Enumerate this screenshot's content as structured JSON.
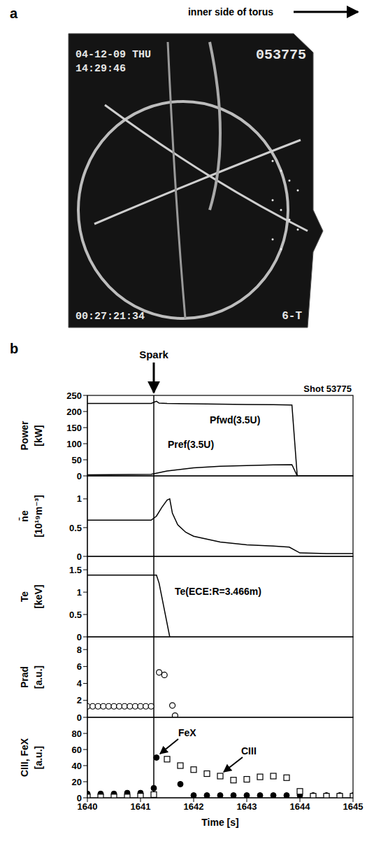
{
  "panel_a": {
    "letter": "a",
    "caption": "inner side of torus",
    "overlay": {
      "date": "04-12-09 THU",
      "time": "14:29:46",
      "frame": "053775",
      "timecode": "00:27:21:34",
      "camera": "6-T"
    }
  },
  "panel_b_letter": "b",
  "spark": {
    "text": "Spark",
    "x": 1641.25
  },
  "chart_data": [
    {
      "type": "line",
      "title": "Shot 53775",
      "ylabel": "Power [kW]",
      "xlim": [
        1640,
        1645
      ],
      "ylim": [
        0,
        250
      ],
      "yticks": [
        0,
        50,
        100,
        150,
        200,
        250
      ],
      "series": [
        {
          "name": "Pfwd(3.5U)",
          "color": "#000000",
          "line_style": "solid",
          "x": [
            1640,
            1641.2,
            1641.3,
            1641.35,
            1641.5,
            1642,
            1642.5,
            1643,
            1643.5,
            1643.85,
            1643.95,
            1645
          ],
          "values": [
            225,
            225,
            232,
            226,
            225,
            224,
            223,
            222,
            221,
            220,
            0,
            0
          ]
        },
        {
          "name": "Pref(3.5U)",
          "color": "#000000",
          "line_style": "solid",
          "x": [
            1640,
            1641.2,
            1641.5,
            1642,
            1642.5,
            1643,
            1643.5,
            1643.85,
            1643.95,
            1645
          ],
          "values": [
            3,
            5,
            15,
            25,
            30,
            32,
            34,
            35,
            0,
            0
          ]
        }
      ]
    },
    {
      "type": "line",
      "ylabel": "n̄e [10¹⁹m⁻³]",
      "xlim": [
        1640,
        1645
      ],
      "ylim": [
        0,
        1.4
      ],
      "yticks": [
        0,
        0.5,
        1
      ],
      "series": [
        {
          "color": "#000000",
          "line_style": "solid",
          "x": [
            1640,
            1641.2,
            1641.3,
            1641.4,
            1641.5,
            1641.55,
            1641.6,
            1641.7,
            1641.85,
            1642,
            1642.5,
            1643,
            1643.5,
            1643.8,
            1644,
            1644.5,
            1645
          ],
          "values": [
            0.63,
            0.63,
            0.7,
            0.85,
            0.98,
            1.0,
            0.75,
            0.55,
            0.42,
            0.35,
            0.25,
            0.2,
            0.18,
            0.16,
            0.06,
            0.05,
            0.05
          ]
        }
      ]
    },
    {
      "type": "line",
      "ylabel": "Te [keV]",
      "xlim": [
        1640,
        1645
      ],
      "ylim": [
        0,
        1.8
      ],
      "yticks": [
        0,
        0.5,
        1,
        1.5
      ],
      "series": [
        {
          "name": "Te(ECE:R=3.466m)",
          "color": "#000000",
          "line_style": "solid",
          "x": [
            1640,
            1641.3,
            1641.35,
            1641.55
          ],
          "values": [
            1.38,
            1.38,
            1.2,
            0
          ]
        }
      ]
    },
    {
      "type": "scatter",
      "ylabel": "Prad [a.u.]",
      "xlim": [
        1640,
        1645
      ],
      "ylim": [
        0,
        9.5
      ],
      "yticks": [
        0,
        2,
        4,
        6,
        8
      ],
      "series": [
        {
          "color": "#000000",
          "marker": "circle_open",
          "x": [
            1640,
            1640.1,
            1640.2,
            1640.3,
            1640.4,
            1640.5,
            1640.6,
            1640.7,
            1640.8,
            1640.9,
            1641,
            1641.1,
            1641.2,
            1641.35,
            1641.45,
            1641.6,
            1641.65
          ],
          "values": [
            1.3,
            1.3,
            1.3,
            1.3,
            1.3,
            1.3,
            1.3,
            1.3,
            1.3,
            1.3,
            1.3,
            1.3,
            1.3,
            5.3,
            5.0,
            1.4,
            0.2
          ]
        }
      ]
    },
    {
      "type": "scatter",
      "ylabel": "CIII, FeX [a.u.]",
      "xlim": [
        1640,
        1645
      ],
      "ylim": [
        0,
        100
      ],
      "yticks": [
        0,
        20,
        40,
        60,
        80
      ],
      "xticks": [
        1640,
        1641,
        1642,
        1643,
        1644,
        1645
      ],
      "xlabel": "Time [s]",
      "series": [
        {
          "name": "FeX",
          "color": "#000000",
          "marker": "circle",
          "x": [
            1640,
            1640.25,
            1640.5,
            1640.75,
            1641,
            1641.25,
            1641.3,
            1641.75,
            1642,
            1642.25,
            1642.5,
            1642.75,
            1643,
            1643.25,
            1643.5,
            1643.75,
            1644,
            1644.25,
            1644.5,
            1644.75,
            1645
          ],
          "values": [
            5,
            5,
            5,
            6,
            6,
            12,
            50,
            17,
            3,
            3,
            3,
            3,
            3,
            3,
            3,
            3,
            3,
            3,
            3,
            3,
            3
          ]
        },
        {
          "name": "CIII",
          "color": "#000000",
          "marker": "square_open",
          "x": [
            1640,
            1640.25,
            1640.5,
            1640.75,
            1641,
            1641.25,
            1641.5,
            1641.75,
            1642,
            1642.25,
            1642.5,
            1642.75,
            1643,
            1643.25,
            1643.5,
            1643.75,
            1644,
            1644.25,
            1644.5,
            1644.75,
            1645
          ],
          "values": [
            1,
            1,
            1,
            1,
            2,
            4,
            48,
            40,
            35,
            30,
            27,
            22,
            23,
            26,
            27,
            25,
            8,
            2,
            2,
            2,
            2
          ]
        }
      ]
    }
  ]
}
